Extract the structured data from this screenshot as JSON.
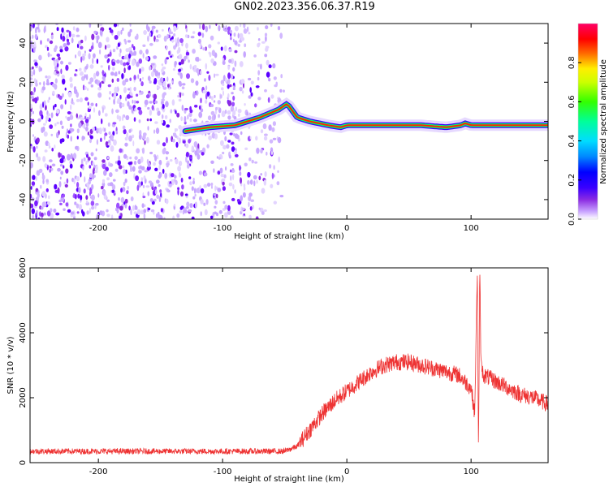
{
  "title": "GN02.2023.356.06.37.R19",
  "colors": {
    "snr_line": "#ee3333",
    "colormap": [
      "#ffffff",
      "#c8a2ff",
      "#8a2be2",
      "#3a00ff",
      "#0000ff",
      "#00ccff",
      "#00ff66",
      "#ffee00",
      "#ff2200",
      "#ff0055"
    ]
  },
  "chart_data": [
    {
      "type": "heatmap",
      "xlabel": "Height of straight line (km)",
      "ylabel": "Frequency (Hz)",
      "xlim": [
        -255,
        162
      ],
      "ylim": [
        -50,
        50
      ],
      "xticks": [
        -200,
        -100,
        0,
        100
      ],
      "yticks": [
        -40,
        -20,
        0,
        20,
        40
      ],
      "colorbar": {
        "label": "Normalized spectral amplitude",
        "range": [
          0,
          1
        ],
        "ticks": [
          0.0,
          0.2,
          0.4,
          0.6,
          0.8
        ]
      },
      "ridge": {
        "x": [
          -130,
          -110,
          -90,
          -70,
          -55,
          -48,
          -40,
          -30,
          -15,
          -5,
          0,
          20,
          40,
          60,
          80,
          92,
          95,
          100,
          120,
          162
        ],
        "y": [
          -5,
          -3,
          -2,
          2,
          6,
          9,
          2,
          0,
          -2,
          -3,
          -2,
          -2,
          -2,
          -2,
          -3,
          -2,
          -1,
          -2,
          -2,
          -2
        ]
      },
      "noise_region_x": [
        -255,
        -50
      ]
    },
    {
      "type": "line",
      "xlabel": "Height of straight line (km)",
      "ylabel": "SNR (10 * v/v)",
      "xlim": [
        -255,
        162
      ],
      "ylim": [
        0,
        6000
      ],
      "xticks": [
        -200,
        -100,
        0,
        100
      ],
      "yticks": [
        0,
        2000,
        4000,
        6000
      ],
      "series": [
        {
          "x": [
            -255,
            -200,
            -150,
            -100,
            -50,
            -40,
            -30,
            -20,
            -10,
            0,
            10,
            20,
            30,
            40,
            50,
            60,
            70,
            80,
            90,
            100,
            103,
            105,
            106,
            107,
            108,
            110,
            120,
            130,
            140,
            150,
            162
          ],
          "y": [
            350,
            350,
            350,
            350,
            350,
            500,
            1000,
            1500,
            1900,
            2200,
            2500,
            2800,
            3000,
            3100,
            3100,
            3000,
            2900,
            2800,
            2700,
            2300,
            1500,
            6000,
            200,
            6000,
            3000,
            2700,
            2500,
            2300,
            2100,
            2000,
            1800
          ]
        }
      ]
    }
  ]
}
